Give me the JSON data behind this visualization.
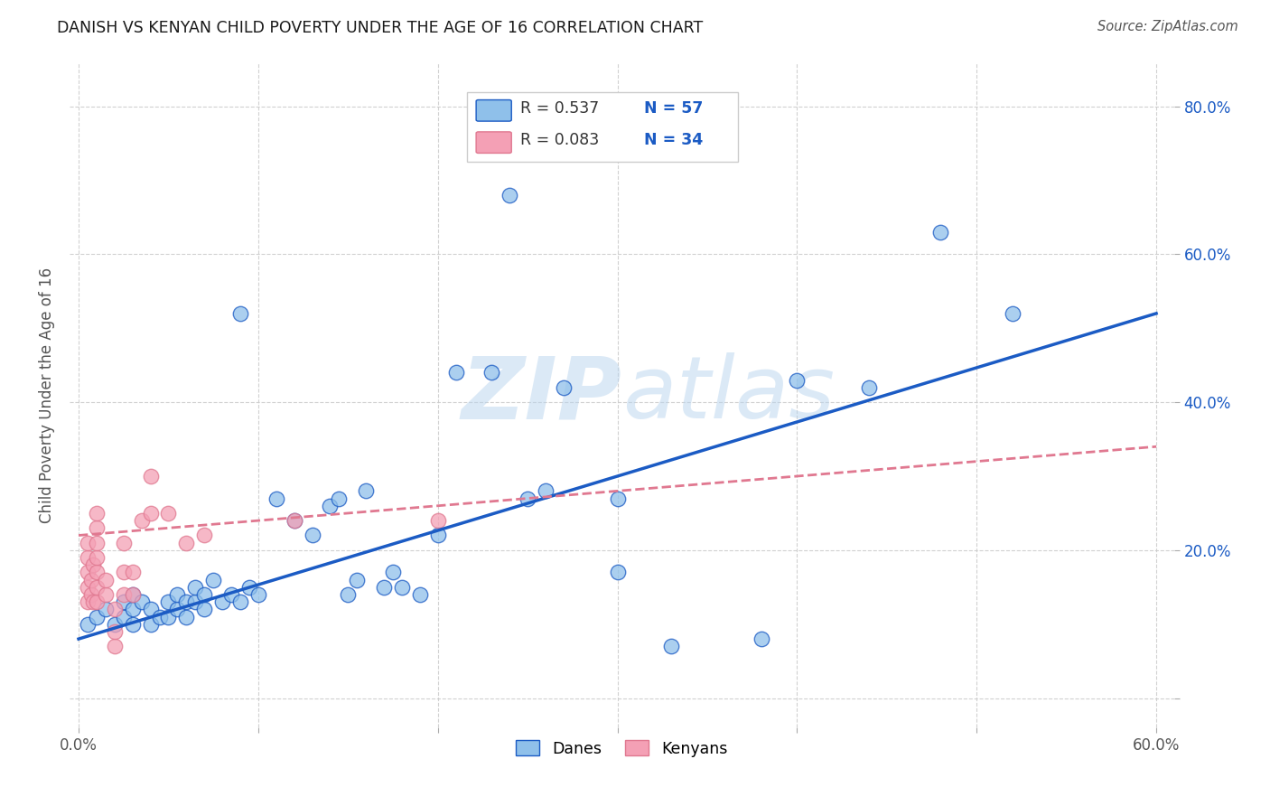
{
  "title": "DANISH VS KENYAN CHILD POVERTY UNDER THE AGE OF 16 CORRELATION CHART",
  "source": "Source: ZipAtlas.com",
  "ylabel": "Child Poverty Under the Age of 16",
  "xlim": [
    -0.005,
    0.61
  ],
  "ylim": [
    -0.04,
    0.86
  ],
  "xticks": [
    0.0,
    0.1,
    0.2,
    0.3,
    0.4,
    0.5,
    0.6
  ],
  "xtick_labels": [
    "0.0%",
    "",
    "",
    "",
    "",
    "",
    "60.0%"
  ],
  "yticks": [
    0.0,
    0.2,
    0.4,
    0.6,
    0.8
  ],
  "ytick_labels_left": [
    "",
    "",
    "",
    "",
    ""
  ],
  "ytick_labels_right": [
    "",
    "20.0%",
    "40.0%",
    "60.0%",
    "80.0%"
  ],
  "danish_color": "#8FC0EA",
  "kenyan_color": "#F4A0B5",
  "line_danish_color": "#1B5BC4",
  "line_kenyan_color": "#E07890",
  "background_color": "#ffffff",
  "grid_color": "#cccccc",
  "watermark_color": "#B8D4EE",
  "danes_scatter_x": [
    0.005,
    0.01,
    0.015,
    0.02,
    0.025,
    0.025,
    0.03,
    0.03,
    0.03,
    0.035,
    0.04,
    0.04,
    0.045,
    0.05,
    0.05,
    0.055,
    0.055,
    0.06,
    0.06,
    0.065,
    0.065,
    0.07,
    0.07,
    0.075,
    0.08,
    0.085,
    0.09,
    0.09,
    0.095,
    0.1,
    0.11,
    0.12,
    0.13,
    0.14,
    0.145,
    0.15,
    0.155,
    0.16,
    0.17,
    0.175,
    0.18,
    0.19,
    0.2,
    0.21,
    0.23,
    0.24,
    0.25,
    0.26,
    0.27,
    0.3,
    0.3,
    0.33,
    0.38,
    0.4,
    0.44,
    0.48,
    0.52
  ],
  "danes_scatter_y": [
    0.1,
    0.11,
    0.12,
    0.1,
    0.11,
    0.13,
    0.1,
    0.12,
    0.14,
    0.13,
    0.1,
    0.12,
    0.11,
    0.11,
    0.13,
    0.12,
    0.14,
    0.11,
    0.13,
    0.13,
    0.15,
    0.12,
    0.14,
    0.16,
    0.13,
    0.14,
    0.13,
    0.52,
    0.15,
    0.14,
    0.27,
    0.24,
    0.22,
    0.26,
    0.27,
    0.14,
    0.16,
    0.28,
    0.15,
    0.17,
    0.15,
    0.14,
    0.22,
    0.44,
    0.44,
    0.68,
    0.27,
    0.28,
    0.42,
    0.17,
    0.27,
    0.07,
    0.08,
    0.43,
    0.42,
    0.63,
    0.52
  ],
  "kenyans_scatter_x": [
    0.005,
    0.005,
    0.005,
    0.005,
    0.005,
    0.007,
    0.007,
    0.008,
    0.008,
    0.01,
    0.01,
    0.01,
    0.01,
    0.01,
    0.01,
    0.01,
    0.015,
    0.015,
    0.02,
    0.02,
    0.02,
    0.025,
    0.025,
    0.025,
    0.03,
    0.03,
    0.035,
    0.04,
    0.04,
    0.05,
    0.06,
    0.07,
    0.12,
    0.2
  ],
  "kenyans_scatter_y": [
    0.13,
    0.15,
    0.17,
    0.19,
    0.21,
    0.14,
    0.16,
    0.13,
    0.18,
    0.13,
    0.15,
    0.17,
    0.19,
    0.21,
    0.23,
    0.25,
    0.14,
    0.16,
    0.07,
    0.09,
    0.12,
    0.14,
    0.17,
    0.21,
    0.14,
    0.17,
    0.24,
    0.25,
    0.3,
    0.25,
    0.21,
    0.22,
    0.24,
    0.24
  ],
  "dane_line_x0": 0.0,
  "dane_line_x1": 0.6,
  "dane_line_y0": 0.08,
  "dane_line_y1": 0.52,
  "kenyan_line_x0": 0.0,
  "kenyan_line_x1": 0.6,
  "kenyan_line_y0": 0.22,
  "kenyan_line_y1": 0.34
}
